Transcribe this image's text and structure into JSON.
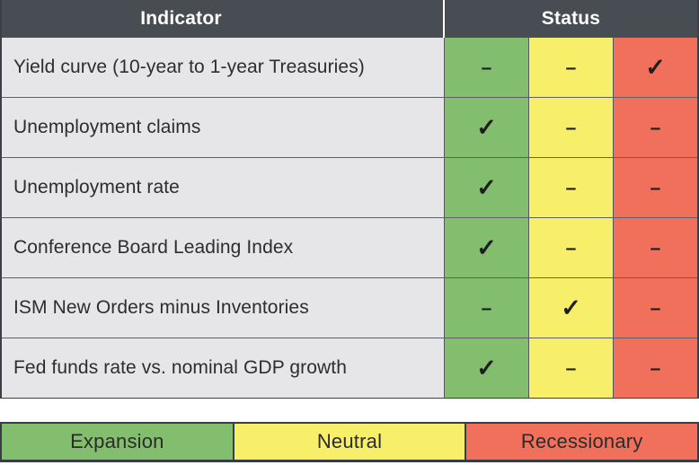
{
  "table": {
    "header": {
      "indicator": "Indicator",
      "status": "Status"
    },
    "rows": [
      {
        "indicator": "Yield curve (10-year to 1-year Treasuries)",
        "marks": [
          "–",
          "–",
          "✓"
        ],
        "status": "Recessionary"
      },
      {
        "indicator": "Unemployment claims",
        "marks": [
          "✓",
          "–",
          "–"
        ],
        "status": "Expansion"
      },
      {
        "indicator": "Unemployment rate",
        "marks": [
          "✓",
          "–",
          "–"
        ],
        "status": "Expansion"
      },
      {
        "indicator": "Conference Board Leading Index",
        "marks": [
          "✓",
          "–",
          "–"
        ],
        "status": "Expansion"
      },
      {
        "indicator": "ISM New Orders minus Inventories",
        "marks": [
          "–",
          "✓",
          "–"
        ],
        "status": "Neutral"
      },
      {
        "indicator": "Fed funds rate vs. nominal GDP growth",
        "marks": [
          "✓",
          "–",
          "–"
        ],
        "status": "Expansion"
      }
    ]
  },
  "legend": {
    "items": [
      {
        "label": "Expansion",
        "color": "#83bd6e"
      },
      {
        "label": "Neutral",
        "color": "#f7ee6a"
      },
      {
        "label": "Recessionary",
        "color": "#f1705b"
      }
    ]
  },
  "colors": {
    "header_bg": "#484d54",
    "header_text": "#ffffff",
    "row_bg": "#e6e6e8",
    "expansion": "#83bd6e",
    "neutral": "#f7ee6a",
    "recessionary": "#f1705b",
    "mark": "#1e1e1e",
    "grid_line": "#54575c",
    "outer_border": "#3c4046"
  },
  "chart_data": {
    "type": "table",
    "title": "Recession indicator status table",
    "columns": [
      "Indicator",
      "Expansion",
      "Neutral",
      "Recessionary"
    ],
    "rows": [
      {
        "indicator": "Yield curve (10-year to 1-year Treasuries)",
        "expansion": "–",
        "neutral": "–",
        "recessionary": "✓",
        "status": "Recessionary"
      },
      {
        "indicator": "Unemployment claims",
        "expansion": "✓",
        "neutral": "–",
        "recessionary": "–",
        "status": "Expansion"
      },
      {
        "indicator": "Unemployment rate",
        "expansion": "✓",
        "neutral": "–",
        "recessionary": "–",
        "status": "Expansion"
      },
      {
        "indicator": "Conference Board Leading Index",
        "expansion": "✓",
        "neutral": "–",
        "recessionary": "–",
        "status": "Expansion"
      },
      {
        "indicator": "ISM New Orders minus Inventories",
        "expansion": "–",
        "neutral": "✓",
        "recessionary": "–",
        "status": "Neutral"
      },
      {
        "indicator": "Fed funds rate vs. nominal GDP growth",
        "expansion": "✓",
        "neutral": "–",
        "recessionary": "–",
        "status": "Expansion"
      }
    ],
    "legend": [
      "Expansion",
      "Neutral",
      "Recessionary"
    ],
    "legend_position": "bottom"
  }
}
